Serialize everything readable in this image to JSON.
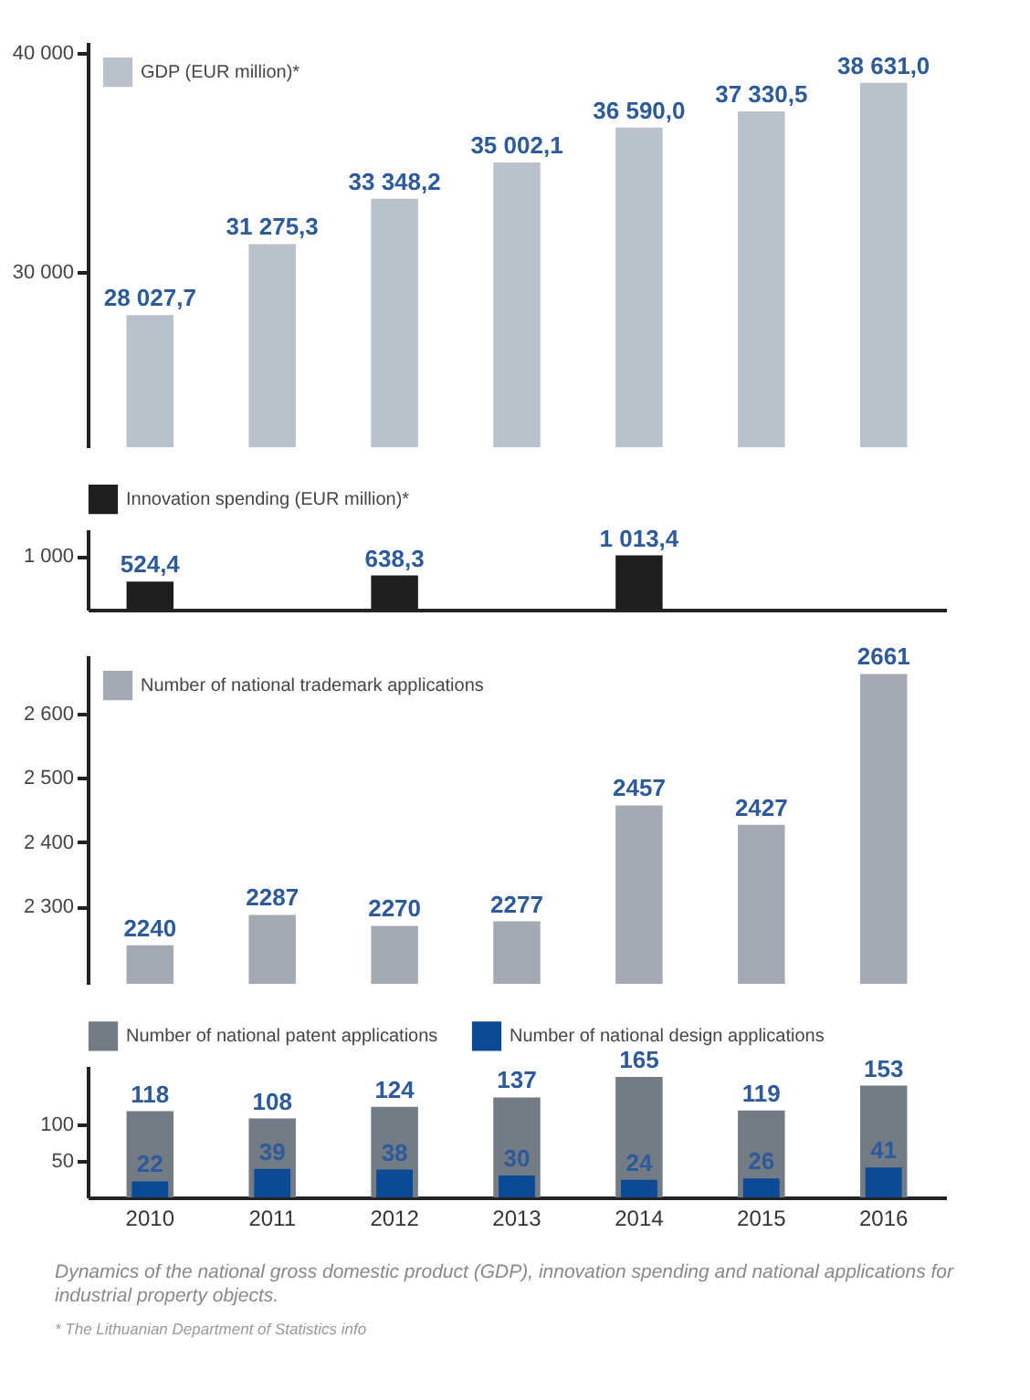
{
  "chart_data": [
    {
      "type": "bar",
      "categories": [
        "2010",
        "2011",
        "2012",
        "2013",
        "2014",
        "2015",
        "2016"
      ],
      "series": [
        {
          "name": "GDP (EUR million)*",
          "color": "#b9c1cb",
          "values": [
            28027.7,
            31275.3,
            33348.2,
            35002.1,
            36590.0,
            37330.5,
            38631.0
          ],
          "value_labels": [
            "28 027,7",
            "31 275,3",
            "33 348,2",
            "35 002,1",
            "36 590,0",
            "37 330,5",
            "38 631,0"
          ]
        }
      ],
      "ylim": [
        22000,
        40500
      ],
      "yticks": [
        {
          "value": 30000,
          "label": "30 000"
        },
        {
          "value": 40000,
          "label": "40 000"
        }
      ],
      "legend": "top left",
      "tick_labels": "y"
    },
    {
      "type": "bar",
      "categories": [
        "2010",
        "2011",
        "2012",
        "2013",
        "2014",
        "2015",
        "2016"
      ],
      "series": [
        {
          "name": "Innovation spending (EUR million)*",
          "color": "#1e1e1e",
          "values": [
            524.4,
            null,
            638.3,
            null,
            1013.4,
            null,
            null
          ],
          "value_labels": [
            "524,4",
            null,
            "638,3",
            null,
            "1 013,4",
            null,
            null
          ]
        }
      ],
      "ylim": [
        0,
        1500
      ],
      "yticks": [
        {
          "value": 1000,
          "label": "1 000"
        }
      ],
      "legend": "top",
      "tick_labels": "y"
    },
    {
      "type": "bar",
      "categories": [
        "2010",
        "2011",
        "2012",
        "2013",
        "2014",
        "2015",
        "2016"
      ],
      "series": [
        {
          "name": "Number of national trademark applications",
          "color": "#a3aab4",
          "values": [
            2240,
            2287,
            2270,
            2277,
            2457,
            2427,
            2661
          ]
        }
      ],
      "ylim": [
        2180,
        2690
      ],
      "yticks": [
        {
          "value": 2300,
          "label": "2 300"
        },
        {
          "value": 2400,
          "label": "2 400"
        },
        {
          "value": 2500,
          "label": "2 500"
        },
        {
          "value": 2600,
          "label": "2 600"
        }
      ],
      "legend": "top left",
      "data_labels": true,
      "tick_labels": "y"
    },
    {
      "type": "bar",
      "categories": [
        "2010",
        "2011",
        "2012",
        "2013",
        "2014",
        "2015",
        "2016"
      ],
      "series": [
        {
          "name": "Number of national patent applications",
          "color": "#737b85",
          "values": [
            118,
            108,
            124,
            137,
            165,
            119,
            153
          ]
        },
        {
          "name": "Number of national design applications",
          "color": "#0d4a96",
          "values": [
            22,
            39,
            38,
            30,
            24,
            26,
            41
          ]
        }
      ],
      "ylim": [
        0,
        180
      ],
      "yticks": [
        50,
        100
      ],
      "legend": "top",
      "data_labels": true,
      "annotations": [
        "Dynamics of the national gross domestic product (GDP), innovation spending and national applications for industrial property objects.",
        "* The Lithuanian Department of Statistics info"
      ]
    }
  ]
}
